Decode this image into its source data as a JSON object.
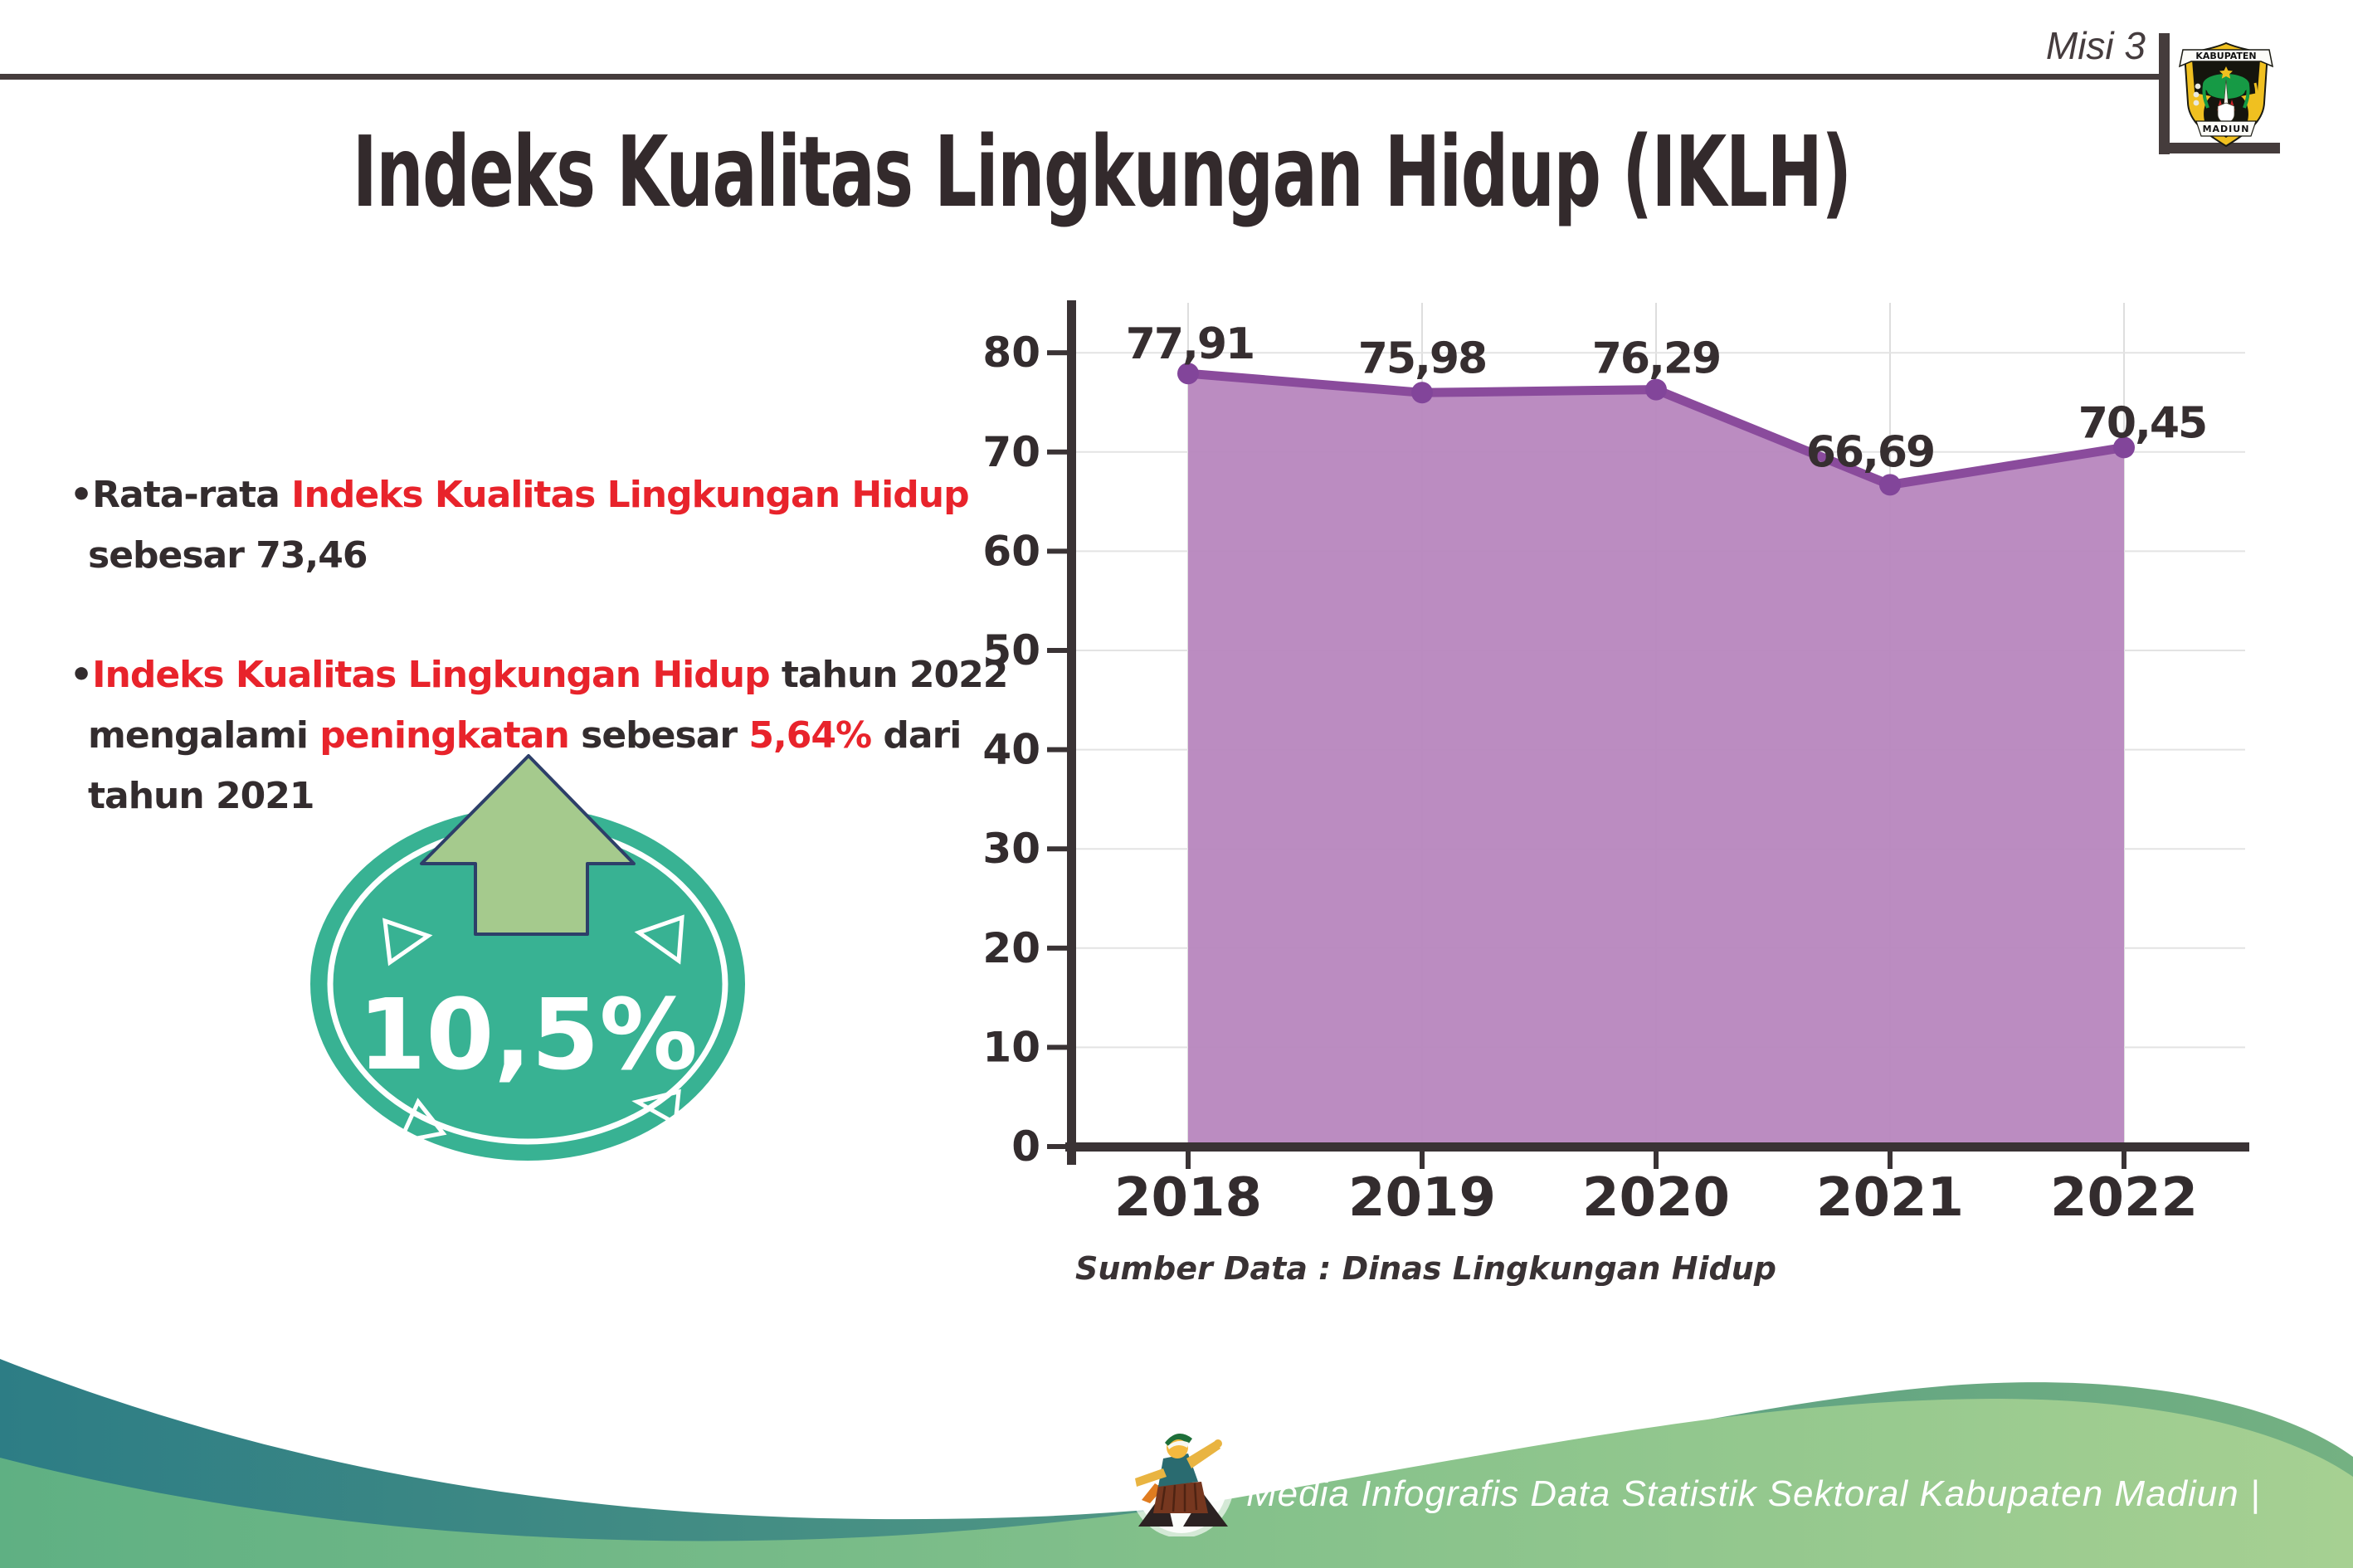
{
  "page": {
    "misi_label": "Misi 3"
  },
  "logo": {
    "name": "lambang-kabupaten-madiun",
    "top_banner": "KABUPATEN",
    "bottom_banner": "MADIUN"
  },
  "title": "Indeks Kualitas Lingkungan Hidup (IKLH)",
  "bullets": [
    {
      "lines": [
        [
          {
            "t": "Rata-rata ",
            "c": "dark"
          },
          {
            "t": "Indeks Kualitas Lingkungan Hidup",
            "c": "red"
          }
        ],
        [
          {
            "t": "sebesar 73,46",
            "c": "dark"
          }
        ]
      ]
    },
    {
      "lines": [
        [
          {
            "t": "Indeks Kualitas Lingkungan Hidup",
            "c": "red"
          },
          {
            "t": " tahun 2022",
            "c": "dark"
          }
        ],
        [
          {
            "t": "mengalami ",
            "c": "dark"
          },
          {
            "t": "peningkatan",
            "c": "red"
          },
          {
            "t": " sebesar ",
            "c": "dark"
          },
          {
            "t": "5,64%",
            "c": "red"
          },
          {
            "t": " dari",
            "c": "dark"
          }
        ],
        [
          {
            "t": "tahun 2021",
            "c": "dark"
          }
        ]
      ]
    }
  ],
  "badge": {
    "value": "10,5%",
    "circle_color": "#38b293",
    "ring_color": "#ffffff",
    "arrow_color": "#a5ca8d",
    "arrow_outline_color": "#2d3f69"
  },
  "chart_data": {
    "type": "area",
    "title": "",
    "xlabel": "",
    "ylabel": "",
    "categories": [
      "2018",
      "2019",
      "2020",
      "2021",
      "2022"
    ],
    "values": [
      77.91,
      75.98,
      76.29,
      66.69,
      70.45
    ],
    "point_labels": [
      "77,91",
      "75,98",
      "76,29",
      "66,69",
      "70,45"
    ],
    "ylim": [
      0,
      85
    ],
    "yticks": [
      0,
      10,
      20,
      30,
      40,
      50,
      60,
      70,
      80
    ],
    "grid": true,
    "legend": "none",
    "source": "Sumber Data : Dinas Lingkungan Hidup",
    "fill_color": "#b887be",
    "line_color": "#8a4b9c",
    "dot_color": "#82459a",
    "label_color": "#362e30",
    "axis_color": "#3a3335",
    "grid_color": "#e3e3e3"
  },
  "footer": {
    "credit": "Media Infografis Data Statistik Sektoral Kabupaten Madiun |"
  },
  "colors": {
    "text_dark": "#332c2e",
    "accent_red": "#e8232b",
    "rule": "#453c3c",
    "wave_teal_left": "#2d7d85",
    "wave_teal_right": "#74b182",
    "wave_green_left": "#5fb083",
    "wave_green_right": "#a6d092"
  }
}
